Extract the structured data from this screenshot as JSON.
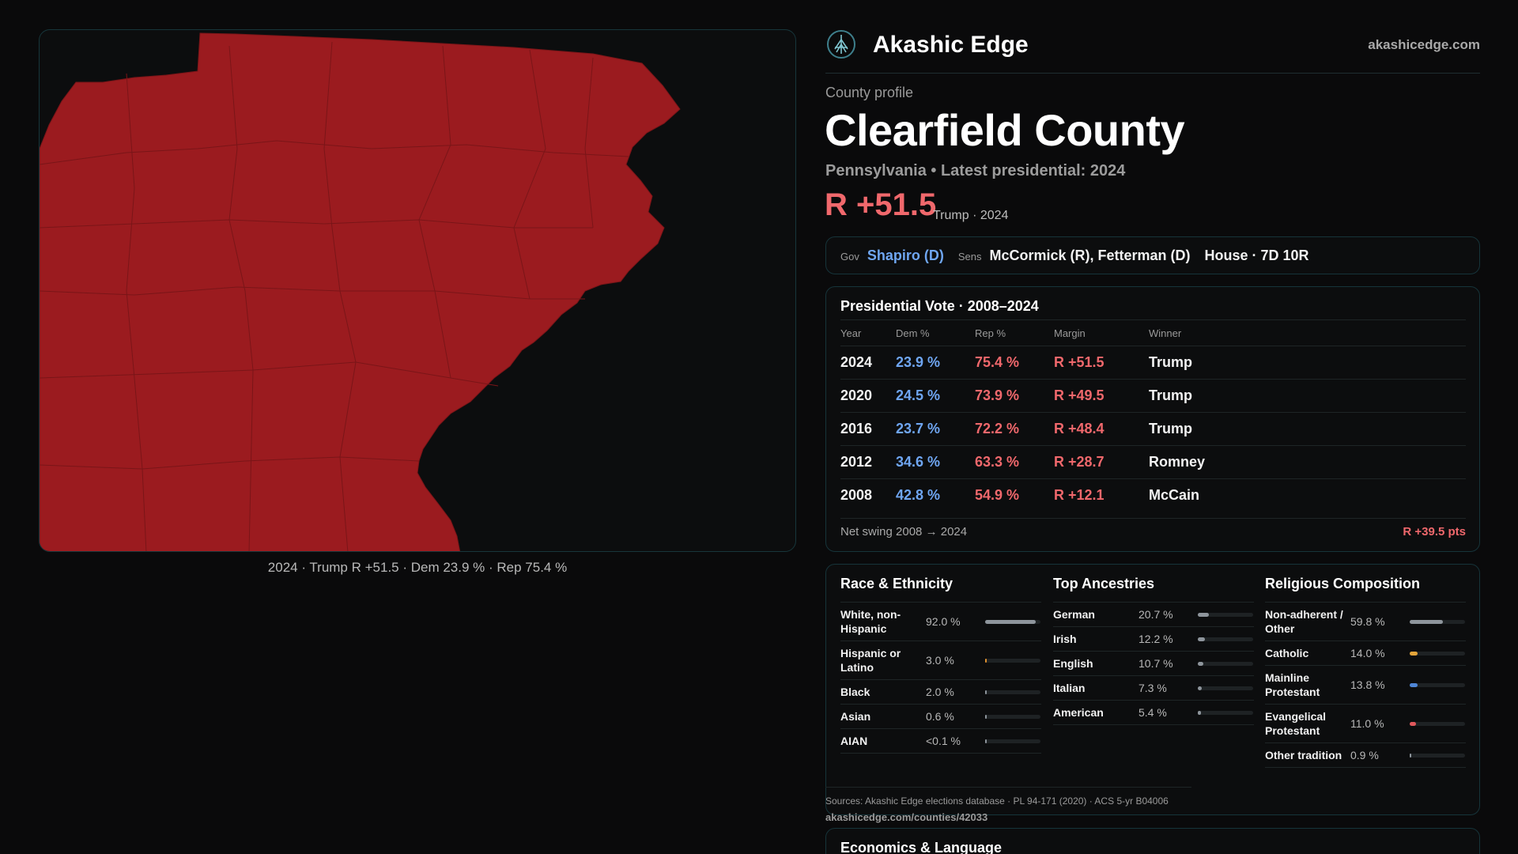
{
  "map": {
    "caption": "2024 · Trump R +51.5 · Dem 23.9 % · Rep 75.4 %",
    "fill_color": "#9b1b1f",
    "line_color": "#7a1518"
  },
  "header": {
    "brand": "Akashic Edge",
    "site": "akashicedge.com",
    "logo_icon": "akashic-tree-logo"
  },
  "profile": {
    "kicker": "County profile",
    "county": "Clearfield County",
    "subtitle": "Pennsylvania • Latest presidential: 2024",
    "margin": "R +51.5",
    "margin_note": "Trump · 2024"
  },
  "officials": {
    "gov_label": "Gov",
    "gov_value": "Shapiro (D)",
    "sens_label": "Sens",
    "sens_value": "McCormick (R), Fetterman (D)",
    "house_value": "House · 7D 10R"
  },
  "presidential": {
    "title": "Presidential Vote · 2008–2024",
    "columns": [
      "Year",
      "Dem %",
      "Rep %",
      "Margin",
      "Winner"
    ],
    "rows": [
      {
        "year": "2024",
        "dem": "23.9 %",
        "rep": "75.4 %",
        "margin": "R +51.5",
        "winner": "Trump"
      },
      {
        "year": "2020",
        "dem": "24.5 %",
        "rep": "73.9 %",
        "margin": "R +49.5",
        "winner": "Trump"
      },
      {
        "year": "2016",
        "dem": "23.7 %",
        "rep": "72.2 %",
        "margin": "R +48.4",
        "winner": "Trump"
      },
      {
        "year": "2012",
        "dem": "34.6 %",
        "rep": "63.3 %",
        "margin": "R +28.7",
        "winner": "Romney"
      },
      {
        "year": "2008",
        "dem": "42.8 %",
        "rep": "54.9 %",
        "margin": "R +12.1",
        "winner": "McCain"
      }
    ],
    "swing_label": "Net swing 2008 → 2024",
    "swing_value": "R +39.5 pts"
  },
  "race": {
    "title": "Race & Ethnicity",
    "items": [
      {
        "label": "White, non-Hispanic",
        "value": "92.0 %",
        "share": 0.92,
        "color": "#8e959c"
      },
      {
        "label": "Hispanic or Latino",
        "value": "3.0 %",
        "share": 0.03,
        "color": "#e0902e"
      },
      {
        "label": "Black",
        "value": "2.0 %",
        "share": 0.02,
        "color": "#8e959c"
      },
      {
        "label": "Asian",
        "value": "0.6 %",
        "share": 0.006,
        "color": "#8e959c"
      },
      {
        "label": "AIAN",
        "value": "<0.1 %",
        "share": 0.001,
        "color": "#8e959c"
      }
    ]
  },
  "ancestry": {
    "title": "Top Ancestries",
    "items": [
      {
        "label": "German",
        "value": "20.7 %",
        "share": 0.207,
        "color": "#8e959c"
      },
      {
        "label": "Irish",
        "value": "12.2 %",
        "share": 0.122,
        "color": "#8e959c"
      },
      {
        "label": "English",
        "value": "10.7 %",
        "share": 0.107,
        "color": "#8e959c"
      },
      {
        "label": "Italian",
        "value": "7.3 %",
        "share": 0.073,
        "color": "#8e959c"
      },
      {
        "label": "American",
        "value": "5.4 %",
        "share": 0.054,
        "color": "#8e959c"
      }
    ]
  },
  "religion": {
    "title": "Religious Composition",
    "items": [
      {
        "label": "Non-adherent / Other",
        "value": "59.8 %",
        "share": 0.598,
        "color": "#8e959c"
      },
      {
        "label": "Catholic",
        "value": "14.0 %",
        "share": 0.14,
        "color": "#e3a43a"
      },
      {
        "label": "Mainline Protestant",
        "value": "13.8 %",
        "share": 0.138,
        "color": "#4f86d6"
      },
      {
        "label": "Evangelical Protestant",
        "value": "11.0 %",
        "share": 0.11,
        "color": "#e0585c"
      },
      {
        "label": "Other tradition",
        "value": "0.9 %",
        "share": 0.009,
        "color": "#8e959c"
      }
    ]
  },
  "sources": {
    "text": "Sources: Akashic Edge elections database · PL 94-171 (2020) · ACS 5-yr B04006",
    "url": "akashicedge.com/counties/42033"
  },
  "economics": {
    "title": "Economics & Language"
  }
}
